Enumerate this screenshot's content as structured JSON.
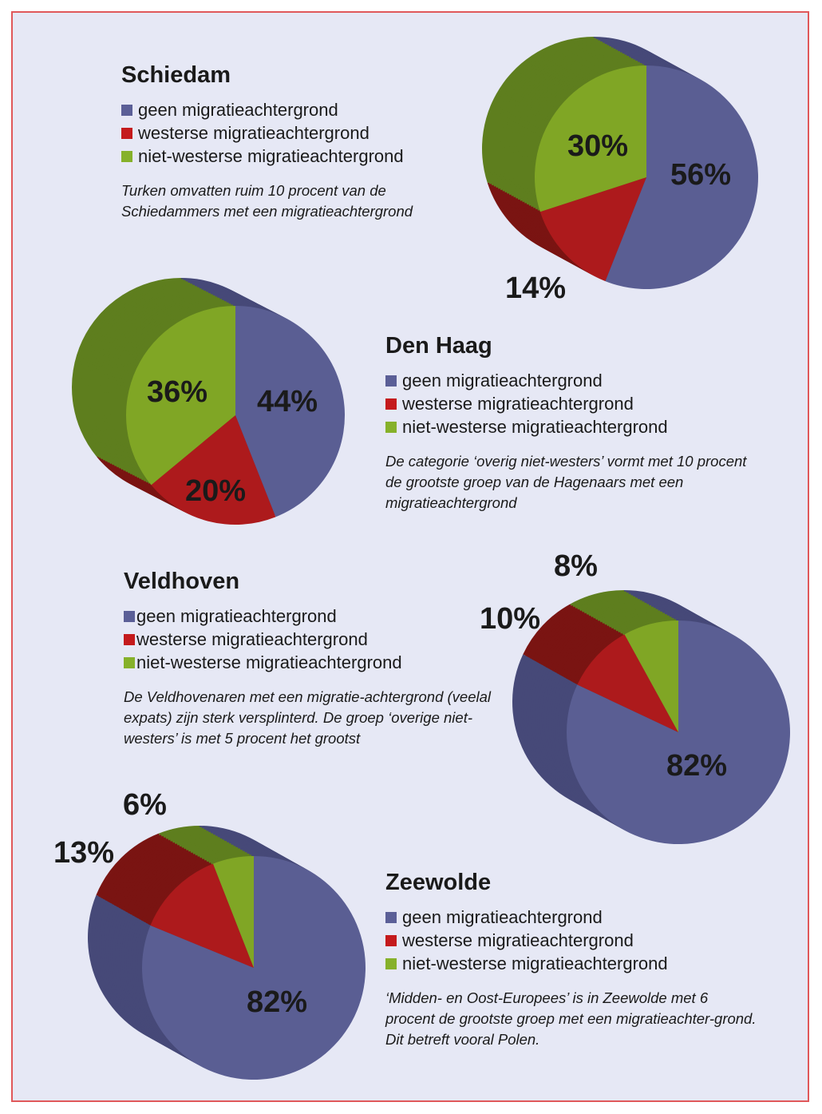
{
  "colors": {
    "geen": "#5a5e93",
    "westers": "#ad1a1c",
    "niet_westers": "#80a625",
    "geen_side": "#464978",
    "westers_side": "#7a1412",
    "niet_westers_side": "#5e7e1e",
    "background": "#e6e8f5",
    "border": "#e0585a"
  },
  "legend": [
    "geen migratieachtergrond",
    "westerse migratieachtergrond",
    "niet-westerse migratieachtergrond"
  ],
  "chart_data": [
    {
      "type": "pie",
      "title": "Schiedam",
      "categories": [
        "geen migratieachtergrond",
        "westerse migratieachtergrond",
        "niet-westerse migratieachtergrond"
      ],
      "values": [
        56,
        14,
        30
      ],
      "labels": [
        "56%",
        "14%",
        "30%"
      ],
      "note": "Turken omvatten ruim 10 procent van de Schiedammers met een migratieachtergrond"
    },
    {
      "type": "pie",
      "title": "Den Haag",
      "categories": [
        "geen migratieachtergrond",
        "westerse migratieachtergrond",
        "niet-westerse migratieachtergrond"
      ],
      "values": [
        44,
        20,
        36
      ],
      "labels": [
        "44%",
        "20%",
        "36%"
      ],
      "note": "De categorie ‘overig niet-westers’ vormt met 10 procent de grootste groep van de Hagenaars met een migratieachtergrond"
    },
    {
      "type": "pie",
      "title": "Veldhoven",
      "categories": [
        "geen migratieachtergrond",
        "westerse migratieachtergrond",
        "niet-westerse migratieachtergrond"
      ],
      "values": [
        82,
        10,
        8
      ],
      "labels": [
        "82%",
        "10%",
        "8%"
      ],
      "note": "De Veldhovenaren met een migratie-achtergrond (veelal expats) zijn sterk versplinterd. De groep ‘overige niet-westers’ is met 5 procent het grootst"
    },
    {
      "type": "pie",
      "title": "Zeewolde",
      "categories": [
        "geen migratieachtergrond",
        "westerse migratieachtergrond",
        "niet-westerse migratieachtergrond"
      ],
      "values": [
        82,
        13,
        6
      ],
      "labels": [
        "82%",
        "13%",
        "6%"
      ],
      "note": "‘Midden- en Oost-Europees’ is in Zeewolde met 6 procent de grootste groep met een migratieachter-grond. Dit betreft vooral Polen."
    }
  ]
}
